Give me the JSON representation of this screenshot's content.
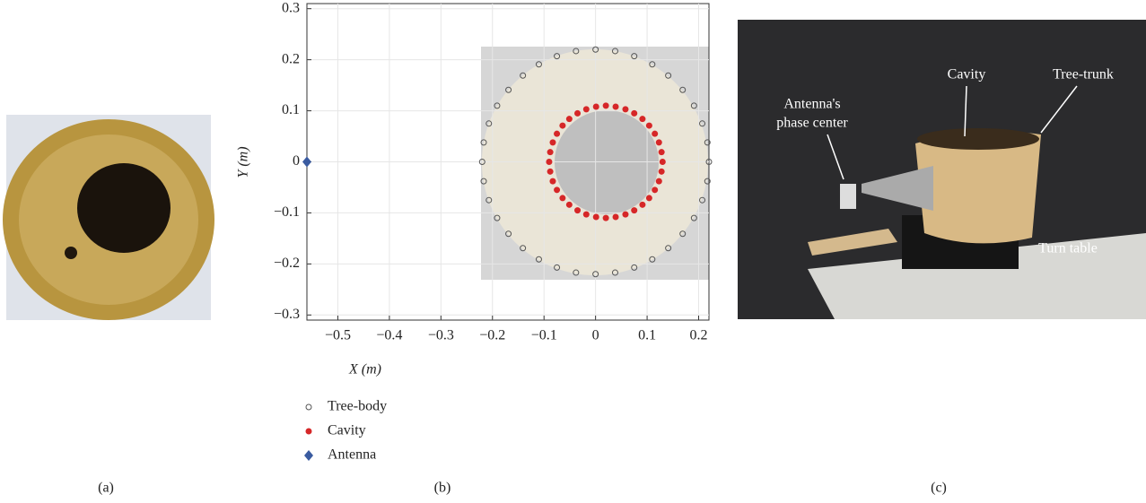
{
  "panel_labels": [
    "(a)",
    "(b)",
    "(c)"
  ],
  "photo_c": {
    "labels": [
      "Antenna's",
      "phase center",
      "Cavity",
      "Tree-trunk",
      "Turn table"
    ]
  },
  "chart_data": {
    "type": "scatter",
    "x_label": "X (m)",
    "y_label": "Y (m)",
    "xlim": [
      -0.56,
      0.22
    ],
    "ylim": [
      -0.31,
      0.31
    ],
    "xticks": [
      {
        "value": -0.5,
        "label": "−0.5"
      },
      {
        "value": -0.4,
        "label": "−0.4"
      },
      {
        "value": -0.3,
        "label": "−0.3"
      },
      {
        "value": -0.2,
        "label": "−0.2"
      },
      {
        "value": -0.1,
        "label": "−0.1"
      },
      0,
      0.1,
      0.2
    ],
    "yticks": [
      {
        "value": -0.3,
        "label": "−0.3"
      },
      {
        "value": -0.2,
        "label": "−0.2"
      },
      {
        "value": -0.1,
        "label": "−0.1"
      },
      0,
      0.1,
      0.2,
      0.3
    ],
    "grid": true,
    "legend": "below",
    "series": [
      {
        "name": "Tree-body",
        "color": "#555555",
        "marker": "circle-open",
        "x": [
          0.22,
          0.217,
          0.207,
          0.191,
          0.169,
          0.141,
          0.11,
          0.075,
          0.038,
          0,
          -0.038,
          -0.075,
          -0.11,
          -0.141,
          -0.169,
          -0.191,
          -0.207,
          -0.217,
          -0.22,
          -0.217,
          -0.207,
          -0.191,
          -0.169,
          -0.141,
          -0.11,
          -0.075,
          -0.038,
          0,
          0.038,
          0.075,
          0.11,
          0.141,
          0.169,
          0.191,
          0.207,
          0.217
        ],
        "values": [
          0,
          0.038,
          0.075,
          0.11,
          0.141,
          0.169,
          0.191,
          0.207,
          0.217,
          0.22,
          0.217,
          0.207,
          0.191,
          0.169,
          0.141,
          0.11,
          0.075,
          0.038,
          0,
          -0.038,
          -0.075,
          -0.11,
          -0.141,
          -0.169,
          -0.191,
          -0.207,
          -0.217,
          -0.22,
          -0.217,
          -0.207,
          -0.191,
          -0.169,
          -0.141,
          -0.11,
          -0.075,
          -0.038
        ]
      },
      {
        "name": "Cavity",
        "color": "#d62728",
        "marker": "circle",
        "x": [
          0.13,
          0.128,
          0.123,
          0.115,
          0.104,
          0.091,
          0.075,
          0.058,
          0.039,
          0.02,
          0.001,
          -0.018,
          -0.035,
          -0.051,
          -0.064,
          -0.075,
          -0.083,
          -0.088,
          -0.09,
          -0.088,
          -0.083,
          -0.075,
          -0.064,
          -0.051,
          -0.035,
          -0.018,
          0.001,
          0.02,
          0.039,
          0.058,
          0.075,
          0.091,
          0.104,
          0.115,
          0.123,
          0.128
        ],
        "values": [
          0,
          0.019,
          0.038,
          0.055,
          0.071,
          0.084,
          0.095,
          0.103,
          0.108,
          0.11,
          0.108,
          0.103,
          0.095,
          0.084,
          0.071,
          0.055,
          0.038,
          0.019,
          0,
          -0.019,
          -0.038,
          -0.055,
          -0.071,
          -0.084,
          -0.095,
          -0.103,
          -0.108,
          -0.11,
          -0.108,
          -0.103,
          -0.095,
          -0.084,
          -0.071,
          -0.055,
          -0.038,
          -0.019
        ]
      },
      {
        "name": "Antenna",
        "color": "#3a5ba0",
        "marker": "diamond",
        "x": [
          -0.56
        ],
        "values": [
          0
        ]
      }
    ]
  }
}
